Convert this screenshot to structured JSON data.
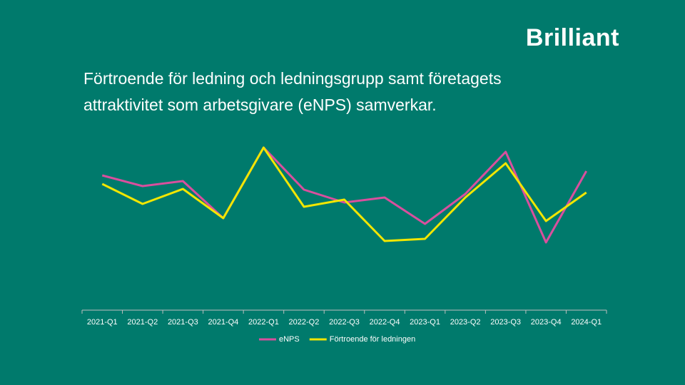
{
  "brand": "Brilliant",
  "chart_data": {
    "type": "line",
    "title": "Förtroende för ledning och ledningsgrupp samt företagets attraktivitet som arbetsgivare (eNPS) samverkar.",
    "categories": [
      "2021-Q1",
      "2021-Q2",
      "2021-Q3",
      "2021-Q4",
      "2022-Q1",
      "2022-Q2",
      "2022-Q3",
      "2022-Q4",
      "2023-Q1",
      "2023-Q2",
      "2023-Q3",
      "2023-Q4",
      "2024-Q1"
    ],
    "ylim": [
      0,
      100
    ],
    "series": [
      {
        "name": "eNPS",
        "color": "#d94f9e",
        "values": [
          75.6,
          69.6,
          72.4,
          51.6,
          91.2,
          67.6,
          60.4,
          63.2,
          48.4,
          65.2,
          88.8,
          38,
          78
        ]
      },
      {
        "name": "Förtroende för ledningen",
        "color": "#f2e600",
        "values": [
          70.8,
          59.6,
          68,
          51.6,
          91.2,
          58,
          62,
          38.8,
          40,
          63.2,
          82.4,
          50,
          66
        ]
      }
    ]
  }
}
